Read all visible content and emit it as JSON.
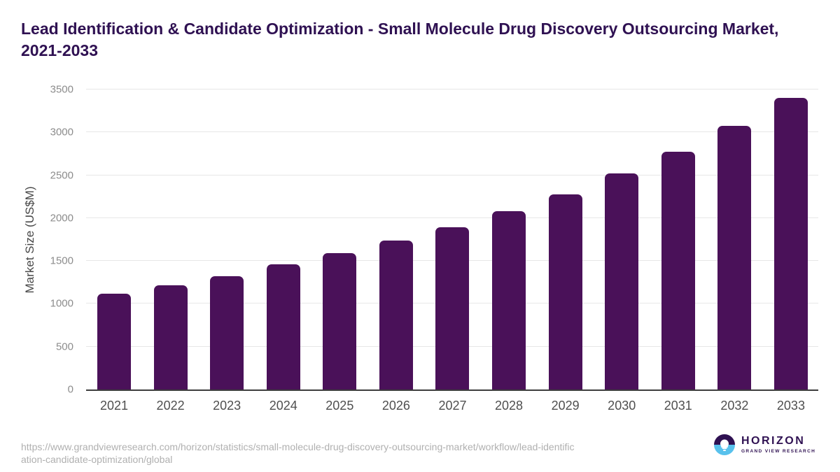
{
  "header": {
    "title": "Lead Identification & Candidate Optimization - Small Molecule Drug Discovery Outsourcing Market, 2021-2033"
  },
  "chart_data": {
    "type": "bar",
    "title": "Lead Identification & Candidate Optimization - Small Molecule Drug Discovery Outsourcing Market, 2021-2033",
    "categories": [
      "2021",
      "2022",
      "2023",
      "2024",
      "2025",
      "2026",
      "2027",
      "2028",
      "2029",
      "2030",
      "2031",
      "2032",
      "2033"
    ],
    "values": [
      1120,
      1215,
      1320,
      1460,
      1590,
      1740,
      1890,
      2080,
      2280,
      2520,
      2775,
      3075,
      3405
    ],
    "xlabel": "",
    "ylabel": "Market Size (US$M)",
    "ylim": [
      0,
      3500
    ],
    "y_ticks": [
      0,
      500,
      1000,
      1500,
      2000,
      2500,
      3000,
      3500
    ],
    "grid": "horizontal",
    "legend_position": "none",
    "bar_color": "#4a1159"
  },
  "footer": {
    "source_url_line1": "https://www.grandviewresearch.com/horizon/statistics/small-molecule-drug-discovery-outsourcing-market/workflow/lead-identific",
    "source_url_line2": "ation-candidate-optimization/global",
    "logo": {
      "icon": "horizon-sunset-icon",
      "name": "HORIZON",
      "subtitle": "GRAND VIEW RESEARCH"
    }
  },
  "colors": {
    "title": "#2f1152",
    "bar": "#4a1159",
    "gridline": "#e7e7e7",
    "axis_line": "#3d3d3d",
    "y_tick_label": "#8c8c8c",
    "x_tick_label": "#4f4f4f",
    "source_text": "#b0b0b0",
    "logo_blue": "#58c1ec",
    "logo_purple": "#2f1152"
  }
}
